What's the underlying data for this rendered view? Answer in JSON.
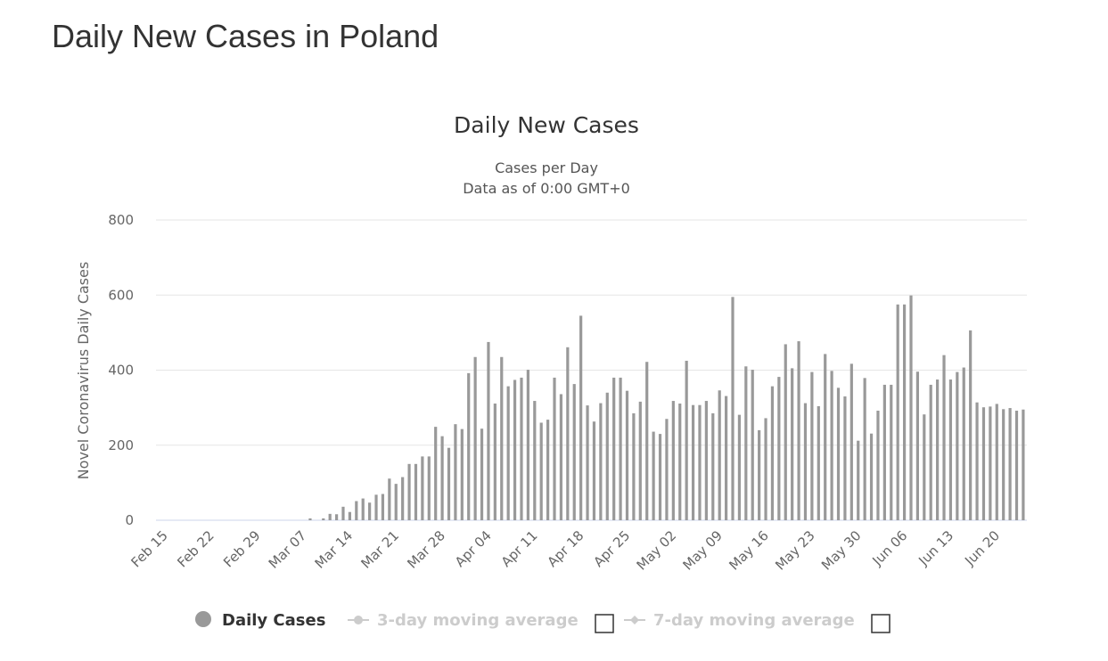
{
  "page_title": "Daily New Cases in Poland",
  "chart_data": {
    "type": "bar",
    "title": "Daily New Cases",
    "subtitle": [
      "Cases per Day",
      "Data as of 0:00 GMT+0"
    ],
    "ylabel": "Novel Coronavirus Daily Cases",
    "xlabel": "",
    "ylim": [
      0,
      800
    ],
    "yticks": [
      "0",
      "200",
      "400",
      "600",
      "800"
    ],
    "grid": true,
    "bar_color": "#999999",
    "xticks": [
      "Feb 15",
      "Feb 22",
      "Feb 29",
      "Mar 07",
      "Mar 14",
      "Mar 21",
      "Mar 28",
      "Apr 04",
      "Apr 11",
      "Apr 18",
      "Apr 25",
      "May 02",
      "May 09",
      "May 16",
      "May 23",
      "May 30",
      "Jun 06",
      "Jun 13",
      "Jun 20"
    ],
    "x": [
      "Feb 15",
      "Feb 16",
      "Feb 17",
      "Feb 18",
      "Feb 19",
      "Feb 20",
      "Feb 21",
      "Feb 22",
      "Feb 23",
      "Feb 24",
      "Feb 25",
      "Feb 26",
      "Feb 27",
      "Feb 28",
      "Feb 29",
      "Mar 01",
      "Mar 02",
      "Mar 03",
      "Mar 04",
      "Mar 05",
      "Mar 06",
      "Mar 07",
      "Mar 08",
      "Mar 09",
      "Mar 10",
      "Mar 11",
      "Mar 12",
      "Mar 13",
      "Mar 14",
      "Mar 15",
      "Mar 16",
      "Mar 17",
      "Mar 18",
      "Mar 19",
      "Mar 20",
      "Mar 21",
      "Mar 22",
      "Mar 23",
      "Mar 24",
      "Mar 25",
      "Mar 26",
      "Mar 27",
      "Mar 28",
      "Mar 29",
      "Mar 30",
      "Mar 31",
      "Apr 01",
      "Apr 02",
      "Apr 03",
      "Apr 04",
      "Apr 05",
      "Apr 06",
      "Apr 07",
      "Apr 08",
      "Apr 09",
      "Apr 10",
      "Apr 11",
      "Apr 12",
      "Apr 13",
      "Apr 14",
      "Apr 15",
      "Apr 16",
      "Apr 17",
      "Apr 18",
      "Apr 19",
      "Apr 20",
      "Apr 21",
      "Apr 22",
      "Apr 23",
      "Apr 24",
      "Apr 25",
      "Apr 26",
      "Apr 27",
      "Apr 28",
      "Apr 29",
      "Apr 30",
      "May 01",
      "May 02",
      "May 03",
      "May 04",
      "May 05",
      "May 06",
      "May 07",
      "May 08",
      "May 09",
      "May 10",
      "May 11",
      "May 12",
      "May 13",
      "May 14",
      "May 15",
      "May 16",
      "May 17",
      "May 18",
      "May 19",
      "May 20",
      "May 21",
      "May 22",
      "May 23",
      "May 24",
      "May 25",
      "May 26",
      "May 27",
      "May 28",
      "May 29",
      "May 30",
      "May 31",
      "Jun 01",
      "Jun 02",
      "Jun 03",
      "Jun 04",
      "Jun 05",
      "Jun 06",
      "Jun 07",
      "Jun 08",
      "Jun 09",
      "Jun 10",
      "Jun 11",
      "Jun 12",
      "Jun 13",
      "Jun 14",
      "Jun 15",
      "Jun 16",
      "Jun 17",
      "Jun 18",
      "Jun 19",
      "Jun 20",
      "Jun 21",
      "Jun 22",
      "Jun 23",
      "Jun 24"
    ],
    "series": [
      {
        "name": "Daily Cases",
        "values": [
          0,
          0,
          0,
          0,
          0,
          0,
          0,
          0,
          0,
          0,
          0,
          0,
          0,
          0,
          0,
          0,
          0,
          0,
          0,
          0,
          0,
          0,
          5,
          0,
          5,
          17,
          16,
          36,
          22,
          51,
          58,
          47,
          68,
          70,
          111,
          97,
          115,
          150,
          150,
          170,
          170,
          249,
          224,
          193,
          256,
          243,
          392,
          435,
          244,
          475,
          311,
          435,
          357,
          374,
          380,
          401,
          318,
          260,
          268,
          380,
          336,
          461,
          363,
          545,
          306,
          263,
          312,
          340,
          380,
          380,
          345,
          285,
          316,
          422,
          236,
          230,
          270,
          318,
          311,
          425,
          307,
          307,
          318,
          285,
          346,
          331,
          595,
          281,
          410,
          401,
          240,
          272,
          357,
          382,
          469,
          405,
          477,
          312,
          395,
          304,
          443,
          398,
          353,
          330,
          417,
          212,
          379,
          231,
          292,
          361,
          361,
          575,
          575,
          599,
          396,
          282,
          361,
          375,
          440,
          375,
          395,
          407,
          506,
          314,
          301,
          303,
          310,
          296,
          299,
          292,
          295
        ]
      }
    ],
    "legend": {
      "placement": "bottom",
      "items": [
        {
          "label": "Daily Cases",
          "active": true,
          "color": "#999999"
        },
        {
          "label": "3-day moving average",
          "active": false,
          "color": "#cccccc"
        },
        {
          "label": "7-day moving average",
          "active": false,
          "color": "#cccccc"
        }
      ]
    }
  }
}
